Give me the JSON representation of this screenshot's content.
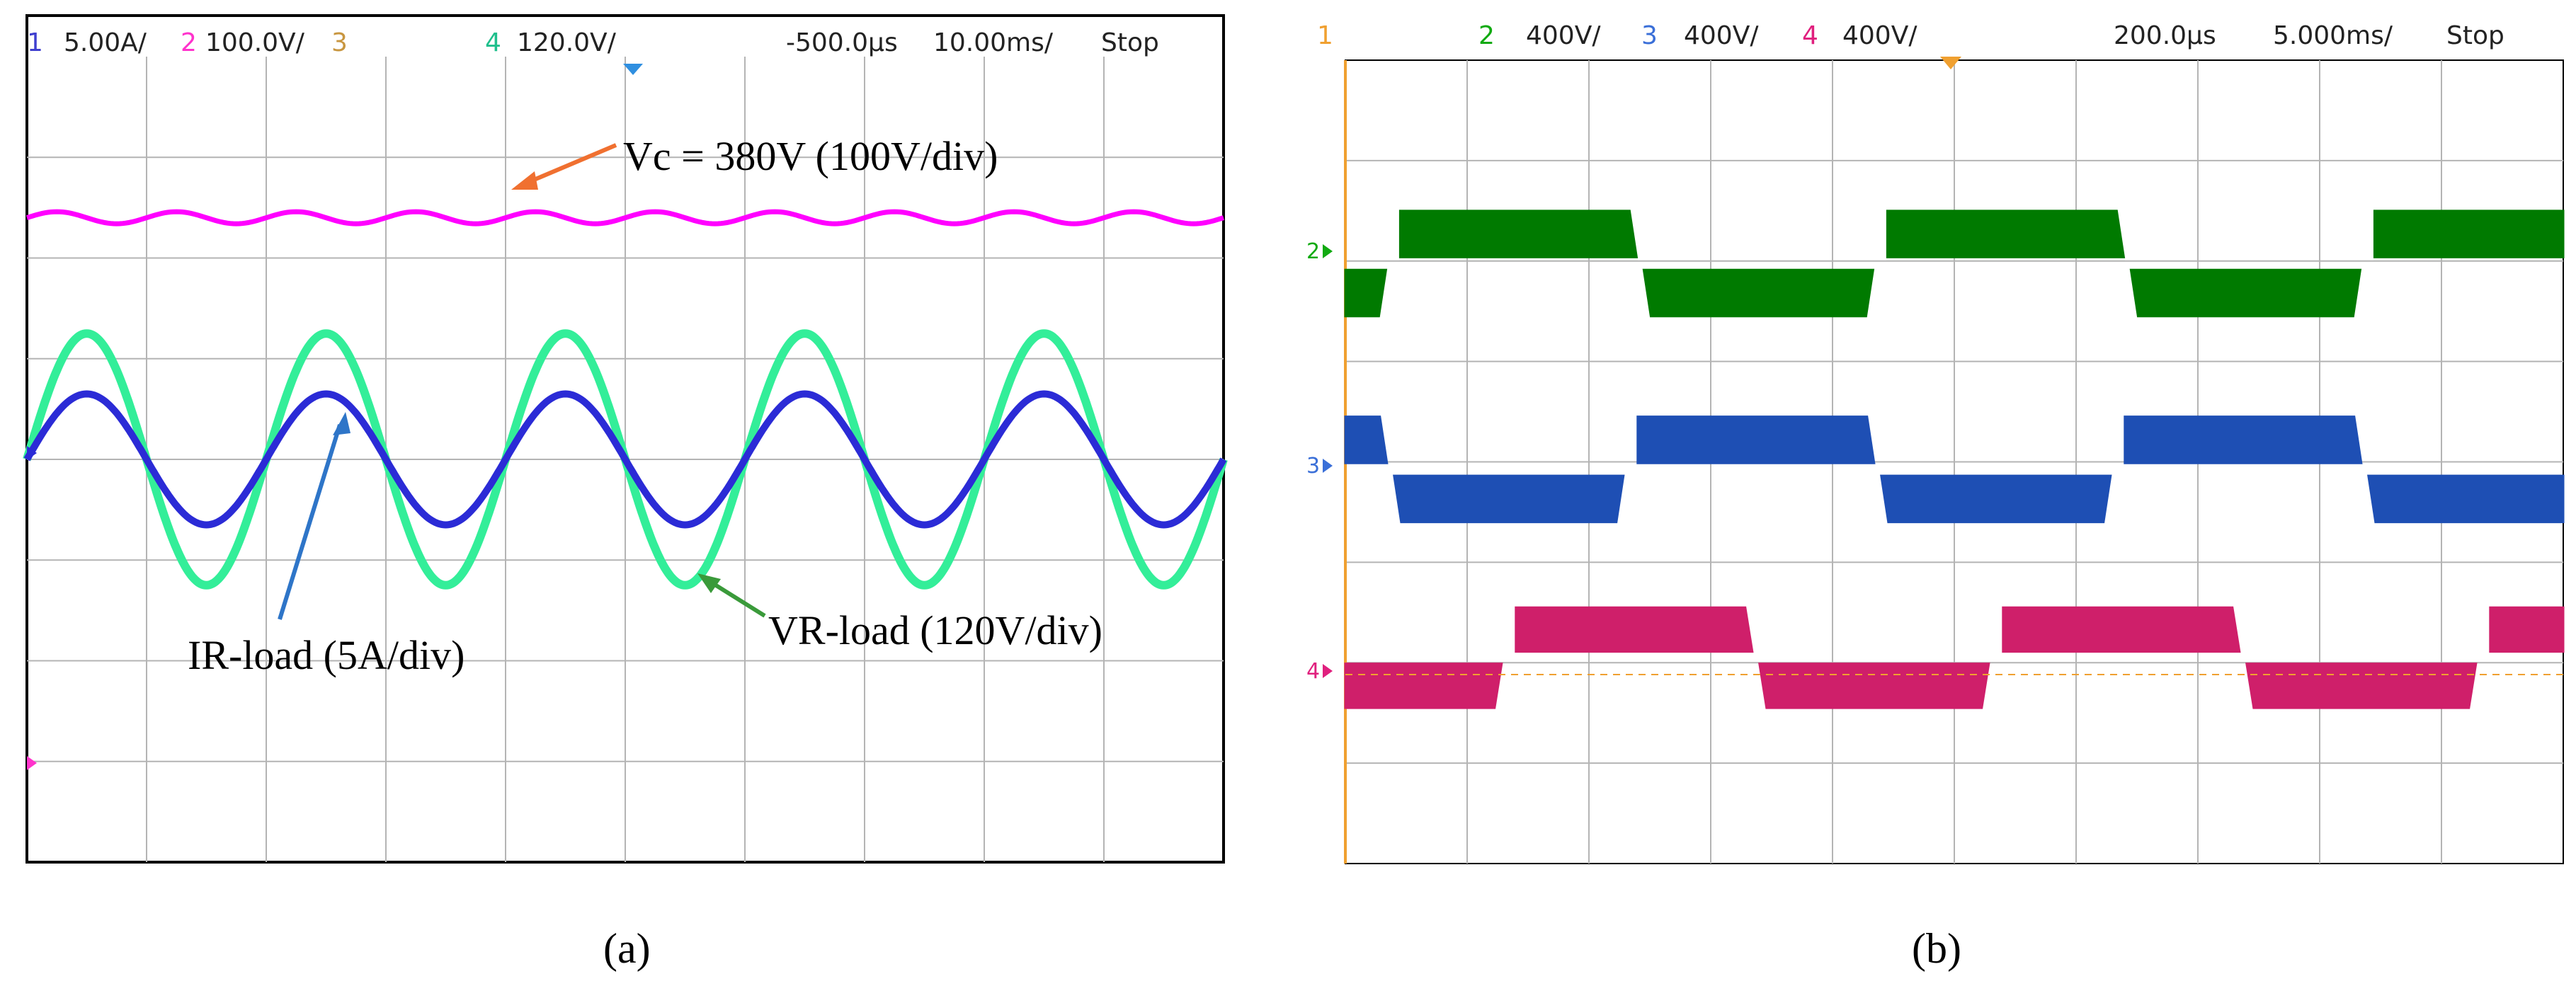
{
  "colors": {
    "ch1": "#3f3fcf",
    "ch2_magenta": "#ff33cc",
    "ch3": "#c89640",
    "ch4_a": "#1fbf8c",
    "cap_vc": "#ff00ff",
    "ir_load": "#2b2bd6",
    "vr_load": "#33ee99",
    "grid": "#b4b4b4",
    "green_trace": "#007a00",
    "blue_trace": "#1e4fb4",
    "pink_trace": "#cf1f6a",
    "ch1_b": "#f0a030",
    "ch2_b": "#11aa11",
    "ch3_b": "#3a6fd8",
    "ch4_b": "#e0207e"
  },
  "scope_a": {
    "header": {
      "ch1_num": "1",
      "ch1_scale": "5.00A/",
      "ch2_num": "2",
      "ch2_scale": "100.0V/",
      "ch3_num": "3",
      "ch4_num": "4",
      "ch4_scale": "120.0V/",
      "time_offset": "-500.0µs",
      "time_div": "10.00ms/",
      "status": "Stop"
    },
    "caption": "(a)"
  },
  "scope_b": {
    "header": {
      "ch1_num": "1",
      "ch2_num": "2",
      "ch2_scale": "400V/",
      "ch3_num": "3",
      "ch3_scale": "400V/",
      "ch4_num": "4",
      "ch4_scale": "400V/",
      "time_offset": "200.0µs",
      "time_div": "5.000ms/",
      "status": "Stop"
    },
    "caption": "(b)"
  },
  "chart_data": [
    {
      "type": "line",
      "title": "",
      "grid": true,
      "xlabel": "",
      "ylabel": "",
      "x_divisions": 10,
      "y_divisions": 8,
      "annotations": [
        "Vc = 380V (100V/div)",
        "IR-load (5A/div)",
        "VR-load  (120V/div)"
      ],
      "series": [
        {
          "name": "Vc = 380V (100V/div)",
          "shape": "dc",
          "level_div": 2.4,
          "ripple_div": 0.06
        },
        {
          "name": "VR-load  (120V/div)",
          "shape": "sine",
          "amplitude_div": 1.25,
          "cycles": 5,
          "offset_div": 0
        },
        {
          "name": "IR-load (5A/div)",
          "shape": "sine",
          "amplitude_div": 0.65,
          "cycles": 5,
          "offset_div": 0
        }
      ]
    },
    {
      "type": "line",
      "title": "",
      "grid": true,
      "xlabel": "",
      "ylabel": "",
      "x_divisions": 10,
      "y_divisions": 8,
      "series": [
        {
          "name": "2",
          "shape": "quasi-square",
          "upper_div": 2.5,
          "lower_div": 1.45,
          "phase_div": 0.45
        },
        {
          "name": "3",
          "shape": "quasi-square",
          "upper_div": 0.45,
          "lower_div": -0.6,
          "phase_div": 2.4
        },
        {
          "name": "4",
          "shape": "quasi-square",
          "upper_div": -1.45,
          "lower_div": -2.45,
          "phase_div": 1.4
        }
      ]
    }
  ]
}
